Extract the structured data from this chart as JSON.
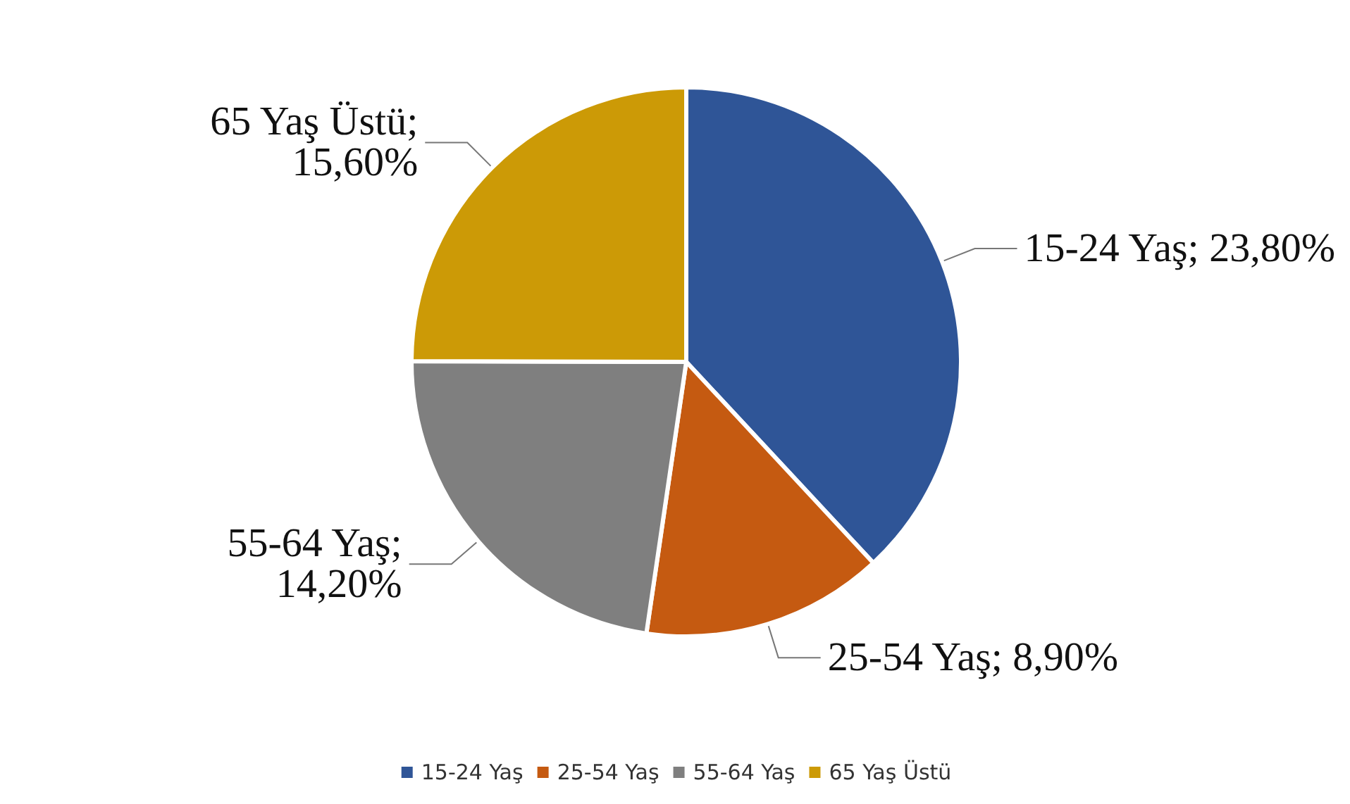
{
  "chart_data": {
    "type": "pie",
    "categories": [
      "15-24 Yaş",
      "25-54 Yaş",
      "55-64 Yaş",
      "65 Yaş Üstü"
    ],
    "values": [
      23.8,
      8.9,
      14.2,
      15.6
    ],
    "value_labels": [
      "15-24 Yaş; 23,80%",
      "25-54 Yaş; 8,90%",
      "55-64 Yaş; 14,20%",
      "65 Yaş Üstü; 15,60%"
    ],
    "colors": [
      "#2f5597",
      "#c55a11",
      "#7f7f7f",
      "#cc9a06"
    ],
    "legend": "bottom"
  }
}
